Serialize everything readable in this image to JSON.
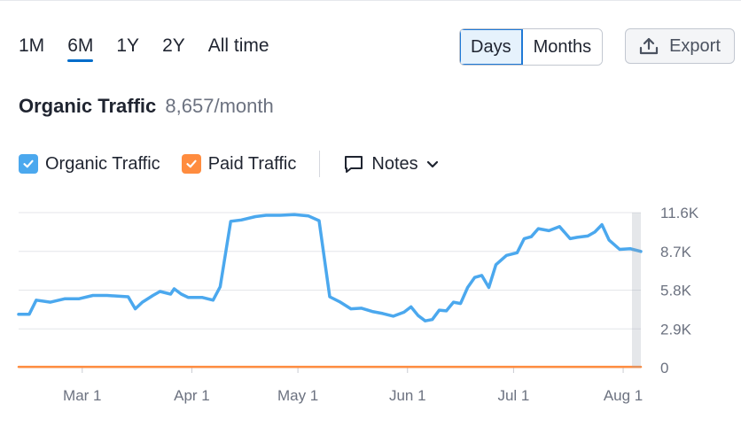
{
  "periods": [
    "1M",
    "6M",
    "1Y",
    "2Y",
    "All time"
  ],
  "active_period": "6M",
  "granularity": {
    "days": "Days",
    "months": "Months",
    "active": "Days"
  },
  "export_label": "Export",
  "headline": {
    "title": "Organic Traffic",
    "value": "8,657/month"
  },
  "legend": {
    "organic": {
      "label": "Organic Traffic",
      "color": "#4ba8ee"
    },
    "paid": {
      "label": "Paid Traffic",
      "color": "#ff8c3f"
    },
    "notes": "Notes"
  },
  "chart_data": {
    "type": "line",
    "ylim": [
      0,
      11600
    ],
    "y_ticks": [
      0,
      2900,
      5800,
      8700,
      11600
    ],
    "y_tick_labels": [
      "0",
      "2.9K",
      "5.8K",
      "8.7K",
      "11.6K"
    ],
    "x_tick_labels": [
      "Mar 1",
      "Apr 1",
      "May 1",
      "Jun 1",
      "Jul 1",
      "Aug 1"
    ],
    "x_tick_days": [
      18,
      49,
      79,
      110,
      140,
      171
    ],
    "grid": true,
    "series": [
      {
        "name": "Organic Traffic",
        "color": "#4ba8ee",
        "points": [
          [
            0,
            4000
          ],
          [
            3,
            4000
          ],
          [
            5,
            5050
          ],
          [
            9,
            4900
          ],
          [
            13,
            5150
          ],
          [
            17,
            5150
          ],
          [
            21,
            5400
          ],
          [
            25,
            5400
          ],
          [
            28,
            5350
          ],
          [
            31,
            5300
          ],
          [
            33,
            4400
          ],
          [
            35,
            4900
          ],
          [
            38,
            5400
          ],
          [
            40,
            5700
          ],
          [
            43,
            5500
          ],
          [
            44,
            5900
          ],
          [
            46,
            5500
          ],
          [
            48,
            5250
          ],
          [
            52,
            5250
          ],
          [
            55,
            5050
          ],
          [
            57,
            6050
          ],
          [
            60,
            10950
          ],
          [
            63,
            11050
          ],
          [
            67,
            11300
          ],
          [
            70,
            11400
          ],
          [
            74,
            11400
          ],
          [
            78,
            11450
          ],
          [
            82,
            11350
          ],
          [
            85,
            11000
          ],
          [
            88,
            5300
          ],
          [
            91,
            4900
          ],
          [
            94,
            4400
          ],
          [
            97,
            4450
          ],
          [
            100,
            4200
          ],
          [
            103,
            4050
          ],
          [
            106,
            3850
          ],
          [
            109,
            4150
          ],
          [
            111,
            4550
          ],
          [
            113,
            3900
          ],
          [
            115,
            3500
          ],
          [
            117,
            3600
          ],
          [
            119,
            4300
          ],
          [
            121,
            4250
          ],
          [
            123,
            4900
          ],
          [
            125,
            4800
          ],
          [
            127,
            6000
          ],
          [
            129,
            6750
          ],
          [
            131,
            6900
          ],
          [
            133,
            6000
          ],
          [
            135,
            7700
          ],
          [
            138,
            8400
          ],
          [
            141,
            8600
          ],
          [
            143,
            9650
          ],
          [
            145,
            9800
          ],
          [
            147,
            10400
          ],
          [
            150,
            10250
          ],
          [
            153,
            10550
          ],
          [
            156,
            9650
          ],
          [
            158,
            9750
          ],
          [
            161,
            9850
          ],
          [
            163,
            10150
          ],
          [
            165,
            10700
          ],
          [
            167,
            9550
          ],
          [
            170,
            8850
          ],
          [
            173,
            8900
          ],
          [
            176,
            8700
          ]
        ]
      },
      {
        "name": "Paid Traffic",
        "color": "#ff8c3f",
        "points": [
          [
            0,
            60
          ],
          [
            176,
            60
          ]
        ]
      }
    ]
  }
}
